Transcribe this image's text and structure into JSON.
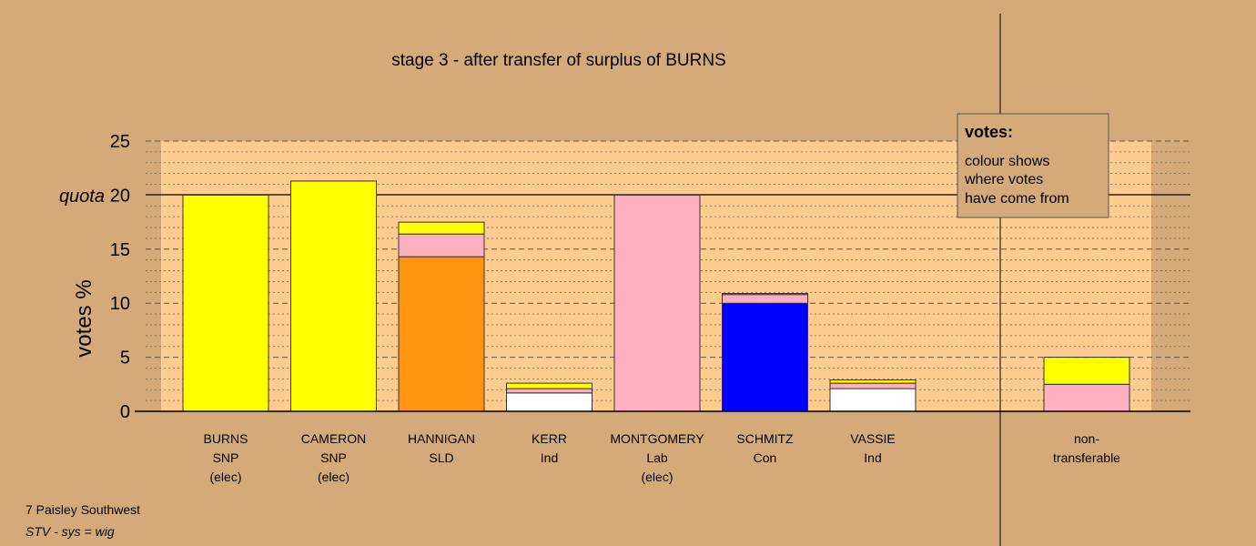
{
  "chart_data": {
    "type": "bar",
    "title": "stage 3 - after transfer of surplus of BURNS",
    "ylabel": "votes %",
    "ylim": [
      0,
      25
    ],
    "yticks": [
      0,
      5,
      10,
      15,
      20,
      25
    ],
    "quota": 20,
    "quota_label": "quota",
    "grid": "dashed every 5, dotted every 1",
    "legend": {
      "title": "votes:",
      "lines": [
        "colour shows",
        "where votes",
        "have come from"
      ]
    },
    "colors": {
      "SNP": "#ffff00",
      "SLD": "#ff9410",
      "Lab": "#ffb0c0",
      "Con": "#0000ff",
      "Ind": "#ffffff"
    },
    "candidates": [
      {
        "name": "BURNS",
        "party": "SNP",
        "status": "(elec)",
        "segments": [
          {
            "source": "SNP",
            "value": 20.0
          }
        ]
      },
      {
        "name": "CAMERON",
        "party": "SNP",
        "status": "(elec)",
        "segments": [
          {
            "source": "SNP",
            "value": 21.3
          }
        ]
      },
      {
        "name": "HANNIGAN",
        "party": "SLD",
        "status": "",
        "segments": [
          {
            "source": "SLD",
            "value": 14.3
          },
          {
            "source": "Lab",
            "value": 2.1
          },
          {
            "source": "SNP",
            "value": 1.1
          }
        ]
      },
      {
        "name": "KERR",
        "party": "Ind",
        "status": "",
        "segments": [
          {
            "source": "Ind",
            "value": 1.7
          },
          {
            "source": "Lab",
            "value": 0.4
          },
          {
            "source": "SNP",
            "value": 0.5
          }
        ]
      },
      {
        "name": "MONTGOMERY",
        "party": "Lab",
        "status": "(elec)",
        "segments": [
          {
            "source": "Lab",
            "value": 20.0
          }
        ]
      },
      {
        "name": "SCHMITZ",
        "party": "Con",
        "status": "",
        "segments": [
          {
            "source": "Con",
            "value": 10.0
          },
          {
            "source": "Lab",
            "value": 0.8
          },
          {
            "source": "SNP",
            "value": 0.1
          }
        ]
      },
      {
        "name": "VASSIE",
        "party": "Ind",
        "status": "",
        "segments": [
          {
            "source": "Ind",
            "value": 2.1
          },
          {
            "source": "Lab",
            "value": 0.5
          },
          {
            "source": "SNP",
            "value": 0.3
          }
        ]
      }
    ],
    "nontransferable": {
      "label_lines": [
        "non-",
        "transferable"
      ],
      "segments": [
        {
          "source": "Lab",
          "value": 2.5
        },
        {
          "source": "SNP",
          "value": 2.5
        }
      ]
    }
  },
  "footer": {
    "constituency": "7 Paisley Southwest",
    "system": "STV - sys = wig"
  }
}
